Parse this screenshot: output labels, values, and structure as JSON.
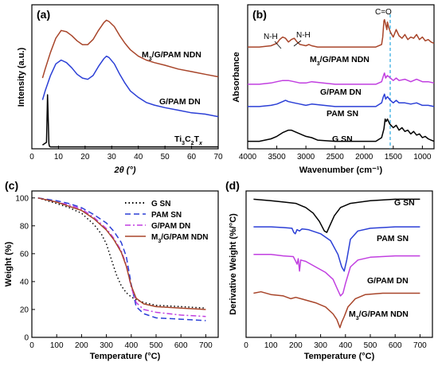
{
  "chart_data": [
    {
      "panel": "(a)",
      "type": "line",
      "xlabel": "2θ (°)",
      "ylabel": "Intensity (a.u.)",
      "xlim": [
        0,
        70
      ],
      "xticks": [
        0,
        10,
        20,
        30,
        40,
        50,
        60,
        70
      ],
      "y_ticks_shown": false,
      "series": [
        {
          "name": "M3/G/PAM NDN",
          "color": "#a8452a",
          "x": [
            4,
            5,
            7,
            9,
            11,
            13,
            15,
            17,
            19,
            21,
            23,
            25,
            27,
            28,
            29,
            31,
            33,
            35,
            37,
            40,
            43,
            46,
            50,
            55,
            60,
            65,
            70
          ],
          "y": [
            0.55,
            0.62,
            0.75,
            0.86,
            0.92,
            0.91,
            0.88,
            0.84,
            0.81,
            0.81,
            0.85,
            0.92,
            0.98,
            1.0,
            0.99,
            0.95,
            0.88,
            0.82,
            0.77,
            0.72,
            0.69,
            0.67,
            0.65,
            0.62,
            0.6,
            0.58,
            0.56
          ]
        },
        {
          "name": "G/PAM DN",
          "color": "#2b3fd6",
          "x": [
            4,
            5,
            7,
            9,
            11,
            13,
            15,
            17,
            19,
            21,
            23,
            25,
            27,
            28,
            29,
            31,
            33,
            35,
            37,
            40,
            43,
            46,
            50,
            55,
            60,
            65,
            70
          ],
          "y": [
            0.38,
            0.45,
            0.57,
            0.66,
            0.69,
            0.67,
            0.63,
            0.58,
            0.55,
            0.54,
            0.57,
            0.64,
            0.7,
            0.72,
            0.71,
            0.66,
            0.58,
            0.51,
            0.45,
            0.4,
            0.36,
            0.34,
            0.32,
            0.3,
            0.28,
            0.27,
            0.25
          ]
        },
        {
          "name": "Ti3C2Tx",
          "color": "#000000",
          "x": [
            4,
            5.5,
            5.9,
            6.2,
            6.4,
            6.6,
            7,
            8,
            10,
            20,
            30,
            40,
            50,
            60,
            70
          ],
          "y": [
            0.03,
            0.05,
            0.42,
            0.2,
            0.04,
            0.02,
            0.015,
            0.015,
            0.015,
            0.015,
            0.015,
            0.015,
            0.015,
            0.015,
            0.015
          ]
        }
      ],
      "labels": {
        "s0": "M",
        "s0sub": "3",
        "s0rest": "/G/PAM NDN",
        "s1": "G/PAM DN",
        "s2a": "Ti",
        "s2b": "3",
        "s2c": "C",
        "s2d": "2",
        "s2e": "T",
        "s2f": "x"
      }
    },
    {
      "panel": "(b)",
      "type": "line",
      "xlabel": "Wavenumber (cm⁻¹)",
      "ylabel": "Absorbance",
      "xlim": [
        4000,
        800
      ],
      "xticks": [
        4000,
        3500,
        3000,
        2500,
        2000,
        1500,
        1000
      ],
      "y_ticks_shown": false,
      "annotations": [
        "N-H",
        "N-H",
        "C=O"
      ],
      "series": [
        {
          "name": "M3/G/PAM NDN",
          "color": "#a8452a",
          "x": [
            4000,
            3800,
            3600,
            3500,
            3450,
            3400,
            3350,
            3300,
            3250,
            3200,
            3150,
            3100,
            3000,
            2950,
            2900,
            2800,
            2500,
            2000,
            1800,
            1700,
            1680,
            1660,
            1650,
            1630,
            1610,
            1600,
            1580,
            1550,
            1500,
            1450,
            1400,
            1350,
            1300,
            1250,
            1200,
            1150,
            1100,
            1050,
            1000,
            950,
            900,
            850,
            800
          ],
          "y": [
            0.78,
            0.78,
            0.79,
            0.81,
            0.84,
            0.86,
            0.85,
            0.82,
            0.84,
            0.85,
            0.82,
            0.8,
            0.79,
            0.8,
            0.79,
            0.78,
            0.78,
            0.78,
            0.78,
            0.8,
            0.86,
            0.99,
            1.0,
            0.96,
            0.92,
            0.98,
            0.94,
            0.9,
            0.86,
            0.92,
            0.87,
            0.85,
            0.88,
            0.84,
            0.86,
            0.85,
            0.88,
            0.84,
            0.86,
            0.83,
            0.84,
            0.82,
            0.81
          ]
        },
        {
          "name": "G/PAM DN",
          "color": "#c13fe0",
          "x": [
            4000,
            3800,
            3600,
            3500,
            3400,
            3350,
            3300,
            3200,
            3100,
            3000,
            2900,
            2500,
            2000,
            1800,
            1700,
            1660,
            1650,
            1630,
            1600,
            1550,
            1500,
            1450,
            1400,
            1300,
            1200,
            1100,
            1000,
            900,
            800
          ],
          "y": [
            0.48,
            0.48,
            0.49,
            0.5,
            0.51,
            0.51,
            0.51,
            0.5,
            0.49,
            0.49,
            0.5,
            0.48,
            0.48,
            0.48,
            0.5,
            0.56,
            0.57,
            0.53,
            0.55,
            0.53,
            0.51,
            0.53,
            0.51,
            0.52,
            0.5,
            0.52,
            0.5,
            0.5,
            0.49
          ]
        },
        {
          "name": "PAM SN",
          "color": "#2b3fd6",
          "x": [
            4000,
            3800,
            3600,
            3500,
            3400,
            3350,
            3300,
            3200,
            3100,
            3000,
            2900,
            2500,
            2000,
            1800,
            1700,
            1670,
            1650,
            1630,
            1600,
            1550,
            1500,
            1450,
            1400,
            1300,
            1200,
            1100,
            1000,
            900,
            800
          ],
          "y": [
            0.3,
            0.3,
            0.31,
            0.32,
            0.34,
            0.35,
            0.34,
            0.33,
            0.32,
            0.31,
            0.32,
            0.3,
            0.3,
            0.3,
            0.33,
            0.38,
            0.4,
            0.36,
            0.38,
            0.35,
            0.33,
            0.35,
            0.33,
            0.33,
            0.32,
            0.33,
            0.31,
            0.31,
            0.3
          ]
        },
        {
          "name": "G SN",
          "color": "#000000",
          "x": [
            4000,
            3800,
            3600,
            3500,
            3400,
            3300,
            3250,
            3200,
            3100,
            3000,
            2900,
            2800,
            2500,
            2000,
            1800,
            1700,
            1660,
            1640,
            1620,
            1600,
            1560,
            1500,
            1450,
            1400,
            1350,
            1300,
            1250,
            1200,
            1150,
            1100,
            1050,
            1000,
            950,
            900,
            850,
            800
          ],
          "y": [
            0.02,
            0.02,
            0.04,
            0.06,
            0.09,
            0.11,
            0.11,
            0.1,
            0.08,
            0.06,
            0.05,
            0.03,
            0.02,
            0.02,
            0.02,
            0.05,
            0.12,
            0.2,
            0.18,
            0.2,
            0.16,
            0.13,
            0.15,
            0.11,
            0.13,
            0.1,
            0.11,
            0.08,
            0.1,
            0.07,
            0.08,
            0.05,
            0.06,
            0.04,
            0.03,
            0.02
          ]
        }
      ],
      "labels": {
        "s0": "M",
        "s0sub": "3",
        "s0rest": "/G/PAM NDN",
        "s1": "G/PAM DN",
        "s2": "PAM SN",
        "s3": "G SN",
        "co": "C=O",
        "nh1": "N-H",
        "nh2": "N-H"
      }
    },
    {
      "panel": "(c)",
      "type": "line",
      "xlabel": "Temperature (°C)",
      "ylabel": "Weight (%)",
      "xlim": [
        0,
        750
      ],
      "ylim": [
        0,
        105
      ],
      "xticks": [
        0,
        100,
        200,
        300,
        400,
        500,
        600,
        700
      ],
      "yticks": [
        0,
        20,
        40,
        60,
        80,
        100
      ],
      "legend_position": "top-right",
      "series": [
        {
          "name": "G SN",
          "color": "#000000",
          "dash": "1.5,3",
          "x": [
            25,
            100,
            150,
            200,
            250,
            280,
            300,
            320,
            340,
            360,
            380,
            400,
            420,
            450,
            500,
            600,
            700
          ],
          "y": [
            100,
            96,
            93,
            89,
            81,
            74,
            67,
            56,
            45,
            37,
            32,
            29,
            27,
            25,
            23,
            22,
            21
          ]
        },
        {
          "name": "PAM SN",
          "color": "#2b3fd6",
          "dash": "7,4",
          "x": [
            25,
            100,
            150,
            200,
            250,
            300,
            330,
            360,
            380,
            400,
            420,
            450,
            500,
            600,
            700
          ],
          "y": [
            100,
            98,
            96,
            93,
            88,
            82,
            76,
            68,
            58,
            38,
            22,
            17,
            14,
            13,
            12
          ]
        },
        {
          "name": "G/PAM DN",
          "color": "#c13fe0",
          "dash": "7,3,2,3",
          "x": [
            25,
            100,
            150,
            200,
            250,
            300,
            330,
            360,
            380,
            400,
            420,
            450,
            500,
            600,
            700
          ],
          "y": [
            100,
            97,
            95,
            92,
            86,
            78,
            71,
            62,
            52,
            36,
            25,
            20,
            18,
            16,
            15
          ]
        },
        {
          "name": "M3/G/PAM NDN",
          "color": "#a8452a",
          "dash": "",
          "x": [
            25,
            100,
            150,
            200,
            250,
            300,
            330,
            360,
            380,
            400,
            420,
            450,
            500,
            600,
            700
          ],
          "y": [
            100,
            97,
            94,
            91,
            85,
            77,
            70,
            61,
            51,
            37,
            28,
            24,
            22,
            21,
            20
          ]
        }
      ],
      "labels": {
        "l0": "G SN",
        "l1": "PAM SN",
        "l2": "G/PAM DN",
        "l3a": "M",
        "l3b": "3",
        "l3c": "/G/PAM NDN"
      }
    },
    {
      "panel": "(d)",
      "type": "line",
      "xlabel": "Temperature (°C)",
      "ylabel": "Derivative Weight (%/°C)",
      "xlim": [
        0,
        750
      ],
      "xticks": [
        0,
        100,
        200,
        300,
        400,
        500,
        600,
        700
      ],
      "y_ticks_shown": false,
      "series": [
        {
          "name": "G SN",
          "color": "#000000",
          "x": [
            30,
            100,
            150,
            200,
            240,
            270,
            295,
            315,
            325,
            335,
            355,
            380,
            420,
            500,
            600,
            700
          ],
          "y": [
            0.96,
            0.95,
            0.94,
            0.93,
            0.9,
            0.86,
            0.8,
            0.73,
            0.72,
            0.76,
            0.84,
            0.9,
            0.93,
            0.95,
            0.96,
            0.96
          ]
        },
        {
          "name": "PAM SN",
          "color": "#2b3fd6",
          "x": [
            30,
            100,
            150,
            185,
            192,
            198,
            205,
            215,
            225,
            250,
            300,
            340,
            370,
            385,
            395,
            405,
            420,
            450,
            500,
            600,
            700
          ],
          "y": [
            0.76,
            0.76,
            0.755,
            0.75,
            0.72,
            0.71,
            0.74,
            0.73,
            0.745,
            0.74,
            0.71,
            0.66,
            0.56,
            0.47,
            0.44,
            0.52,
            0.67,
            0.73,
            0.75,
            0.76,
            0.76
          ]
        },
        {
          "name": "G/PAM DN",
          "color": "#c13fe0",
          "x": [
            30,
            100,
            150,
            190,
            200,
            205,
            210,
            215,
            220,
            240,
            280,
            320,
            350,
            370,
            380,
            390,
            400,
            420,
            450,
            500,
            600,
            700
          ],
          "y": [
            0.56,
            0.56,
            0.55,
            0.545,
            0.51,
            0.49,
            0.53,
            0.44,
            0.52,
            0.51,
            0.47,
            0.43,
            0.38,
            0.3,
            0.26,
            0.28,
            0.35,
            0.47,
            0.52,
            0.54,
            0.55,
            0.55
          ]
        },
        {
          "name": "M3/G/PAM NDN",
          "color": "#a8452a",
          "x": [
            30,
            60,
            100,
            150,
            180,
            200,
            240,
            280,
            320,
            350,
            365,
            378,
            385,
            395,
            410,
            440,
            480,
            550,
            600,
            700
          ],
          "y": [
            0.28,
            0.29,
            0.27,
            0.26,
            0.24,
            0.25,
            0.23,
            0.21,
            0.18,
            0.13,
            0.09,
            0.03,
            0.07,
            0.11,
            0.18,
            0.24,
            0.27,
            0.28,
            0.28,
            0.28
          ]
        }
      ],
      "labels": {
        "s0": "G SN",
        "s1": "PAM SN",
        "s2": "G/PAM DN",
        "s3a": "M",
        "s3b": "3",
        "s3c": "/G/PAM NDN"
      }
    }
  ]
}
